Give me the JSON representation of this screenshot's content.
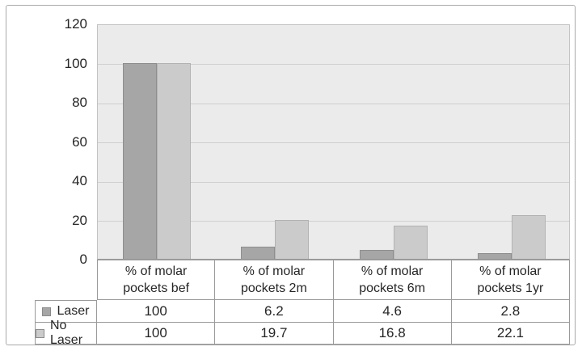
{
  "figure": {
    "background": "#ffffff",
    "border_color": "#a9a9a9"
  },
  "chart_data": {
    "type": "bar",
    "title": "",
    "xlabel": "",
    "ylabel": "",
    "categories": [
      "% of molar pockets bef",
      "% of molar pockets 2m",
      "% of molar pockets 6m",
      "% of molar pockets 1yr"
    ],
    "categories_two_line": [
      [
        "% of molar",
        "pockets bef"
      ],
      [
        "% of molar",
        "pockets 2m"
      ],
      [
        "% of molar",
        "pockets 6m"
      ],
      [
        "% of molar",
        "pockets 1yr"
      ]
    ],
    "series": [
      {
        "name": "Laser",
        "values": [
          100,
          6.2,
          4.6,
          2.8
        ],
        "color": "#a6a6a6",
        "border_color": "#8e8e8e"
      },
      {
        "name": "No Laser",
        "values": [
          100,
          19.7,
          16.8,
          22.1
        ],
        "color": "#cbcbcb",
        "border_color": "#b2b2b2"
      }
    ],
    "ylim": [
      0,
      120
    ],
    "yticks": [
      0,
      20,
      40,
      60,
      80,
      100,
      120
    ],
    "grid": true,
    "plot_background": "#ebebeb",
    "gridline_color": "#cfcfcf",
    "text_color": "#262626",
    "legend_position": "data-table-left",
    "data_table_shown": true
  }
}
